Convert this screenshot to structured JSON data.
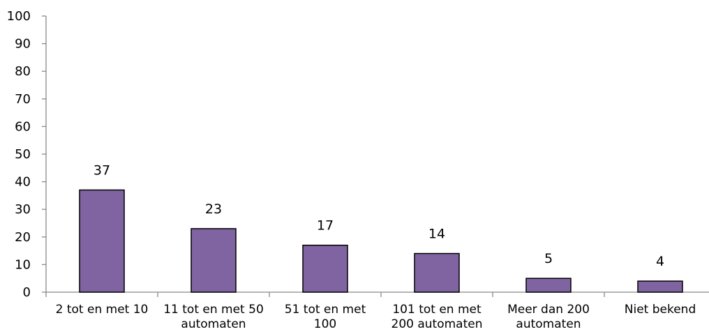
{
  "chart_data": {
    "type": "bar",
    "categories": [
      [
        "2 tot en met 10"
      ],
      [
        "11 tot en met 50",
        "automaten"
      ],
      [
        "51 tot en met",
        "100"
      ],
      [
        "101 tot en met",
        "200 automaten"
      ],
      [
        "Meer dan 200",
        "automaten"
      ],
      [
        "Niet bekend"
      ]
    ],
    "values": [
      37,
      23,
      17,
      14,
      5,
      4
    ],
    "data_labels": [
      "37",
      "23",
      "17",
      "14",
      "5",
      "4"
    ],
    "ylim": [
      0,
      100
    ],
    "yticks": [
      0,
      10,
      20,
      30,
      40,
      50,
      60,
      70,
      80,
      90,
      100
    ],
    "bar_color": "#8064A2",
    "bar_stroke": "#000000",
    "grid": false,
    "legend": "none"
  }
}
